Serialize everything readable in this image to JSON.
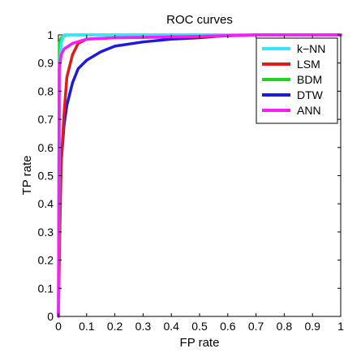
{
  "chart_data": {
    "type": "line",
    "title": "ROC curves",
    "xlabel": "FP rate",
    "ylabel": "TP rate",
    "xlim": [
      0,
      1
    ],
    "ylim": [
      0,
      1
    ],
    "xticks": [
      "0",
      "0.1",
      "0.2",
      "0.3",
      "0.4",
      "0.5",
      "0.6",
      "0.7",
      "0.8",
      "0.9",
      "1"
    ],
    "yticks": [
      "0",
      "0.1",
      "0.2",
      "0.3",
      "0.4",
      "0.5",
      "0.6",
      "0.7",
      "0.8",
      "0.9",
      "1"
    ],
    "grid": false,
    "legend_position": "top-right",
    "series": [
      {
        "name": "k−NN",
        "color": "#33e6ff",
        "points": [
          [
            0,
            0
          ],
          [
            0.005,
            0.9
          ],
          [
            0.01,
            0.97
          ],
          [
            0.02,
            1.0
          ],
          [
            1.0,
            1.0
          ]
        ]
      },
      {
        "name": "LSM",
        "color": "#e01b1b",
        "points": [
          [
            0,
            0
          ],
          [
            0.005,
            0.3
          ],
          [
            0.01,
            0.55
          ],
          [
            0.02,
            0.72
          ],
          [
            0.03,
            0.85
          ],
          [
            0.05,
            0.93
          ],
          [
            0.07,
            0.97
          ],
          [
            0.1,
            0.985
          ],
          [
            0.2,
            0.99
          ],
          [
            0.5,
            0.993
          ],
          [
            0.7,
            1.0
          ],
          [
            1.0,
            1.0
          ]
        ]
      },
      {
        "name": "BDM",
        "color": "#1fd61f",
        "points": [
          [
            0,
            0
          ],
          [
            0.003,
            0.97
          ],
          [
            0.01,
            0.99
          ],
          [
            0.03,
            1.0
          ],
          [
            1.0,
            1.0
          ]
        ]
      },
      {
        "name": "DTW",
        "color": "#1a1ae0",
        "points": [
          [
            0,
            0
          ],
          [
            0.005,
            0.4
          ],
          [
            0.01,
            0.55
          ],
          [
            0.02,
            0.68
          ],
          [
            0.03,
            0.75
          ],
          [
            0.05,
            0.83
          ],
          [
            0.07,
            0.88
          ],
          [
            0.1,
            0.91
          ],
          [
            0.15,
            0.94
          ],
          [
            0.2,
            0.96
          ],
          [
            0.3,
            0.975
          ],
          [
            0.4,
            0.985
          ],
          [
            0.5,
            0.99
          ],
          [
            0.6,
            0.998
          ],
          [
            0.7,
            1.0
          ],
          [
            1.0,
            1.0
          ]
        ]
      },
      {
        "name": "ANN",
        "color": "#ff1aff",
        "points": [
          [
            0,
            0
          ],
          [
            0.003,
            0.88
          ],
          [
            0.01,
            0.93
          ],
          [
            0.02,
            0.95
          ],
          [
            0.05,
            0.97
          ],
          [
            0.1,
            0.985
          ],
          [
            0.2,
            0.99
          ],
          [
            0.5,
            0.995
          ],
          [
            0.7,
            1.0
          ],
          [
            1.0,
            1.0
          ]
        ]
      }
    ]
  }
}
